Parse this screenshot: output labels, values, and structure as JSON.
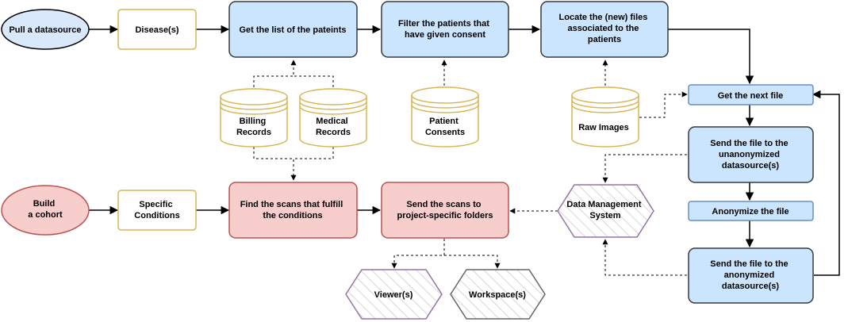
{
  "nodes": {
    "pull_datasource": [
      "Pull a datasource"
    ],
    "diseases": [
      "Disease(s)"
    ],
    "get_patients": [
      "Get the list of the pateints"
    ],
    "filter_patients": [
      "Filter the patients that",
      "have given consent"
    ],
    "locate_files": [
      "Locate the (new) files",
      "associated to the",
      "patients"
    ],
    "billing_records": [
      "Billing",
      "Records"
    ],
    "medical_records": [
      "Medical",
      "Records"
    ],
    "patient_consents": [
      "Patient",
      "Consents"
    ],
    "raw_images": [
      "Raw Images"
    ],
    "get_next_file": [
      "Get the next file"
    ],
    "send_unanonymized": [
      "Send the file to the",
      "unanonymized",
      "datasource(s)"
    ],
    "anonymize_file": [
      "Anonymize the file"
    ],
    "send_anonymized": [
      "Send the file to the",
      "anonymized",
      "datasource(s)"
    ],
    "build_cohort": [
      "Build",
      "a cohort"
    ],
    "specific_conditions": [
      "Specific",
      "Conditions"
    ],
    "find_scans": [
      "Find the scans that fulfill",
      "the conditions"
    ],
    "send_scans": [
      "Send the scans to",
      "project-specific folders"
    ],
    "data_management": [
      "Data Management",
      "System"
    ],
    "viewers": [
      "Viewer(s)"
    ],
    "workspaces": [
      "Workspace(s)"
    ]
  },
  "colors": {
    "blue_fill": "#dae8fc",
    "blue_stroke": "#6c8ebf",
    "blue_box_fill": "#cce5ff",
    "blue_box_stroke": "#36393d",
    "red_fill": "#f8cecc",
    "red_stroke": "#b85450",
    "gold_fill": "#ffffff",
    "gold_stroke": "#d6b656",
    "purple_stroke": "#9673a6",
    "gray_stroke": "#666666"
  }
}
